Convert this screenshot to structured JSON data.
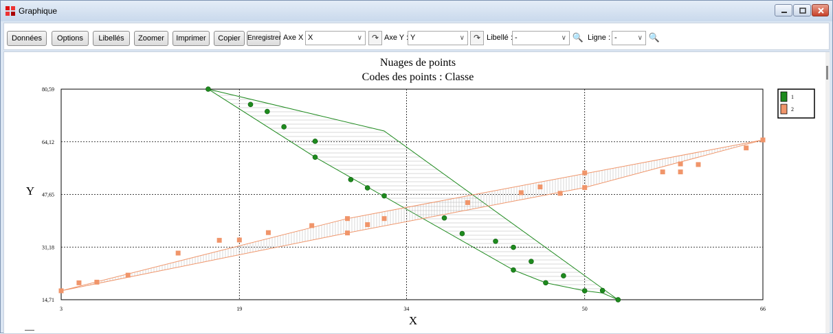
{
  "window": {
    "title": "Graphique",
    "controls": {
      "minimize": "minimize",
      "maximize": "maximize",
      "close": "close"
    }
  },
  "toolbar": {
    "buttons": {
      "donnees": "Données",
      "options": "Options",
      "libelles": "Libellés",
      "zoomer": "Zoomer",
      "imprimer": "Imprimer",
      "copier": "Copier",
      "enregistrer": "Enregistrer"
    },
    "axe_x": {
      "label": "Axe X :",
      "value": "X"
    },
    "axe_y": {
      "label": "Axe Y :",
      "value": "Y"
    },
    "libelle": {
      "label": "Libellé :",
      "value": "-"
    },
    "ligne": {
      "label": "Ligne :",
      "value": "-"
    }
  },
  "chart_data": {
    "type": "scatter",
    "title": "Nuages de points",
    "subtitle": "Codes des points : Classe",
    "xlabel": "X",
    "ylabel": "Y",
    "xlim": [
      3,
      66
    ],
    "ylim": [
      14.71,
      80.59
    ],
    "xticks": [
      "3",
      "19",
      "34",
      "50",
      "66"
    ],
    "yticks": [
      "14,71",
      "31,18",
      "47,65",
      "64,12",
      "80,59"
    ],
    "xtick_values": [
      3,
      19,
      34,
      50,
      66
    ],
    "ytick_values": [
      14.71,
      31.18,
      47.65,
      64.12,
      80.59
    ],
    "grid": true,
    "legend_position": "top-right",
    "series": [
      {
        "name": "1",
        "color": "#1e8a1e",
        "marker": "circle",
        "points": [
          [
            16.2,
            80.6
          ],
          [
            20.0,
            75.8
          ],
          [
            21.5,
            73.6
          ],
          [
            23.0,
            68.8
          ],
          [
            25.8,
            64.3
          ],
          [
            25.8,
            59.3
          ],
          [
            29.0,
            52.3
          ],
          [
            30.5,
            49.7
          ],
          [
            32.0,
            47.2
          ],
          [
            37.4,
            40.3
          ],
          [
            39.0,
            35.4
          ],
          [
            42.0,
            33.0
          ],
          [
            43.6,
            31.1
          ],
          [
            43.6,
            24.0
          ],
          [
            45.2,
            26.7
          ],
          [
            46.5,
            20.0
          ],
          [
            48.1,
            22.2
          ],
          [
            50.0,
            17.5
          ],
          [
            51.6,
            17.6
          ],
          [
            53.0,
            14.7
          ]
        ],
        "hull": [
          [
            16.2,
            80.6
          ],
          [
            32.0,
            67.5
          ],
          [
            53.0,
            14.7
          ],
          [
            51.6,
            16.8
          ],
          [
            50.0,
            17.5
          ],
          [
            46.5,
            20.0
          ],
          [
            43.6,
            24.0
          ],
          [
            25.8,
            59.3
          ]
        ]
      },
      {
        "name": "2",
        "color": "#f0956a",
        "marker": "square",
        "points": [
          [
            3.0,
            17.5
          ],
          [
            4.6,
            20.0
          ],
          [
            6.2,
            20.2
          ],
          [
            9.0,
            22.4
          ],
          [
            13.5,
            29.3
          ],
          [
            17.2,
            33.3
          ],
          [
            19.0,
            33.4
          ],
          [
            21.6,
            35.7
          ],
          [
            25.5,
            37.9
          ],
          [
            28.7,
            40.1
          ],
          [
            28.7,
            35.6
          ],
          [
            30.5,
            38.2
          ],
          [
            32.0,
            40.1
          ],
          [
            39.5,
            45.1
          ],
          [
            44.3,
            48.2
          ],
          [
            46.0,
            50.0
          ],
          [
            47.8,
            48.0
          ],
          [
            50.0,
            49.8
          ],
          [
            50.0,
            54.4
          ],
          [
            57.0,
            54.7
          ],
          [
            58.6,
            54.7
          ],
          [
            58.6,
            57.2
          ],
          [
            60.2,
            57.0
          ],
          [
            64.5,
            62.2
          ],
          [
            66.0,
            64.7
          ]
        ],
        "hull": [
          [
            3.0,
            17.5
          ],
          [
            28.7,
            40.1
          ],
          [
            66.0,
            64.7
          ],
          [
            50.0,
            49.8
          ],
          [
            28.7,
            35.6
          ]
        ]
      }
    ]
  }
}
